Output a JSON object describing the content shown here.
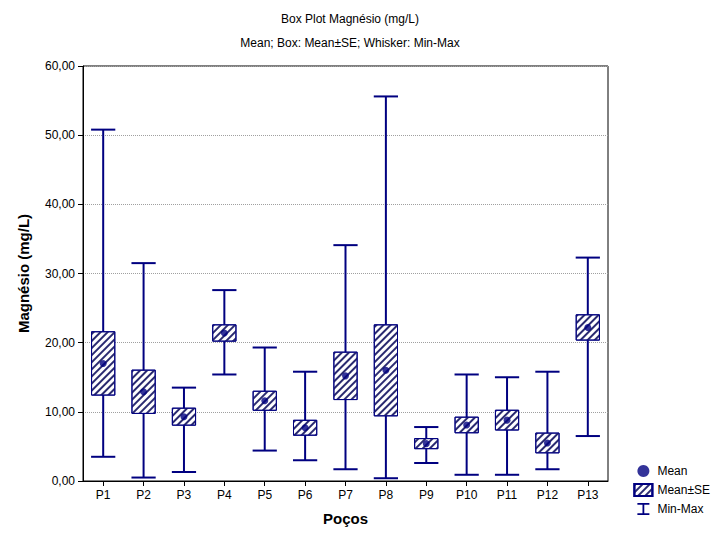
{
  "chart_data": {
    "type": "box",
    "title": "Box Plot Magnésio (mg/L)",
    "subtitle": "Mean; Box: Mean±SE; Whisker: Min-Max",
    "x_label": "Poços",
    "y_label": "Magnésio (mg/L)",
    "categories": [
      "P1",
      "P2",
      "P3",
      "P4",
      "P5",
      "P6",
      "P7",
      "P8",
      "P9",
      "P10",
      "P11",
      "P12",
      "P13"
    ],
    "series": [
      {
        "name": "Mean",
        "type": "scatter",
        "marker": "circle",
        "color": "#000080",
        "values": [
          17.0,
          12.9,
          9.3,
          21.4,
          11.6,
          7.7,
          15.2,
          16.0,
          5.4,
          8.1,
          8.8,
          5.5,
          22.2
        ]
      },
      {
        "name": "Mean±SE",
        "type": "box",
        "color": "#000080",
        "se": [
          4.65,
          3.2,
          1.3,
          1.25,
          1.45,
          1.15,
          3.5,
          6.65,
          0.8,
          1.2,
          1.5,
          1.5,
          1.9
        ]
      },
      {
        "name": "Min-Max",
        "type": "whisker",
        "color": "#000080",
        "min": [
          3.5,
          0.5,
          1.3,
          15.4,
          4.4,
          3.0,
          1.7,
          0.4,
          2.6,
          0.9,
          0.9,
          1.7,
          6.5
        ],
        "max": [
          50.8,
          31.5,
          13.5,
          27.6,
          19.3,
          15.8,
          34.1,
          55.6,
          7.8,
          15.4,
          15.0,
          15.8,
          32.3
        ]
      }
    ],
    "ylim": [
      0,
      60
    ],
    "yticks": [
      {
        "value": 0,
        "label": "0,00"
      },
      {
        "value": 10,
        "label": "10,00"
      },
      {
        "value": 20,
        "label": "20,00"
      },
      {
        "value": 30,
        "label": "30,00"
      },
      {
        "value": 40,
        "label": "40,00"
      },
      {
        "value": 50,
        "label": "50,00"
      },
      {
        "value": 60,
        "label": "60,00"
      }
    ],
    "grid": true,
    "legend": "right"
  }
}
